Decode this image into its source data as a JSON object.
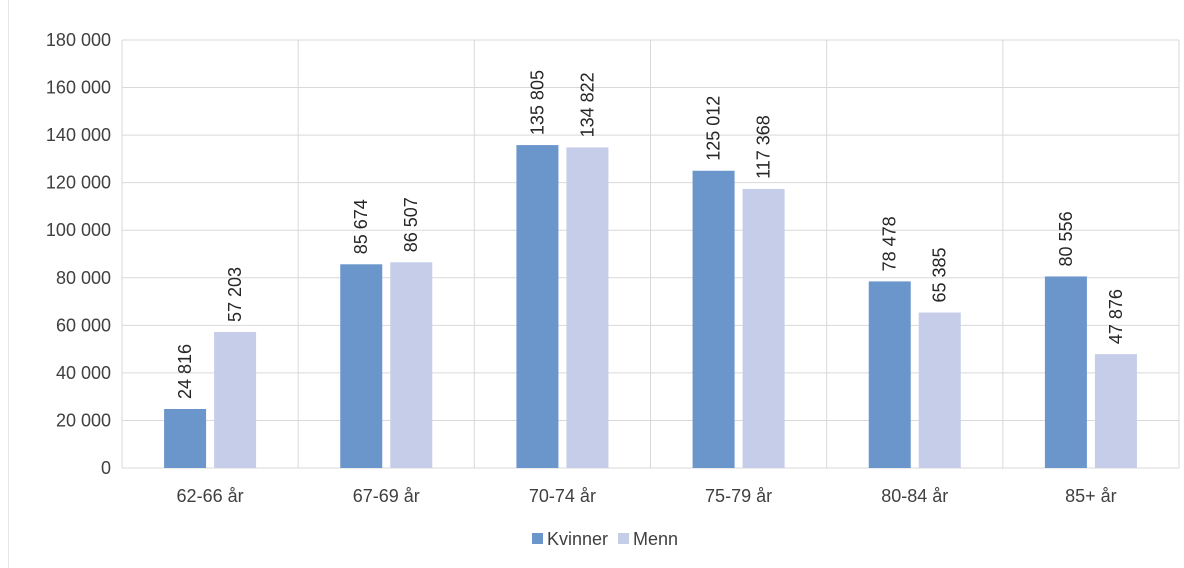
{
  "chart_data": {
    "type": "bar",
    "categories": [
      "62-66 år",
      "67-69 år",
      "70-74 år",
      "75-79 år",
      "80-84 år",
      "85+ år"
    ],
    "series": [
      {
        "name": "Kvinner",
        "color": "#6b96cc",
        "values": [
          24816,
          85674,
          135805,
          125012,
          78478,
          80556
        ],
        "labels": [
          "24 816",
          "85 674",
          "135 805",
          "125 012",
          "78 478",
          "80 556"
        ]
      },
      {
        "name": "Menn",
        "color": "#c5cde9",
        "values": [
          57203,
          86507,
          134822,
          117368,
          65385,
          47876
        ],
        "labels": [
          "57 203",
          "86 507",
          "134 822",
          "117 368",
          "65 385",
          "47 876"
        ]
      }
    ],
    "ylim": [
      0,
      180000
    ],
    "yticks": [
      0,
      20000,
      40000,
      60000,
      80000,
      100000,
      120000,
      140000,
      160000,
      180000
    ],
    "ytick_labels": [
      "0",
      "20 000",
      "40 000",
      "60 000",
      "80 000",
      "100 000",
      "120 000",
      "140 000",
      "160 000",
      "180 000"
    ],
    "grid": true,
    "legend_position": "bottom",
    "gridline_color": "#d9d9d9"
  }
}
